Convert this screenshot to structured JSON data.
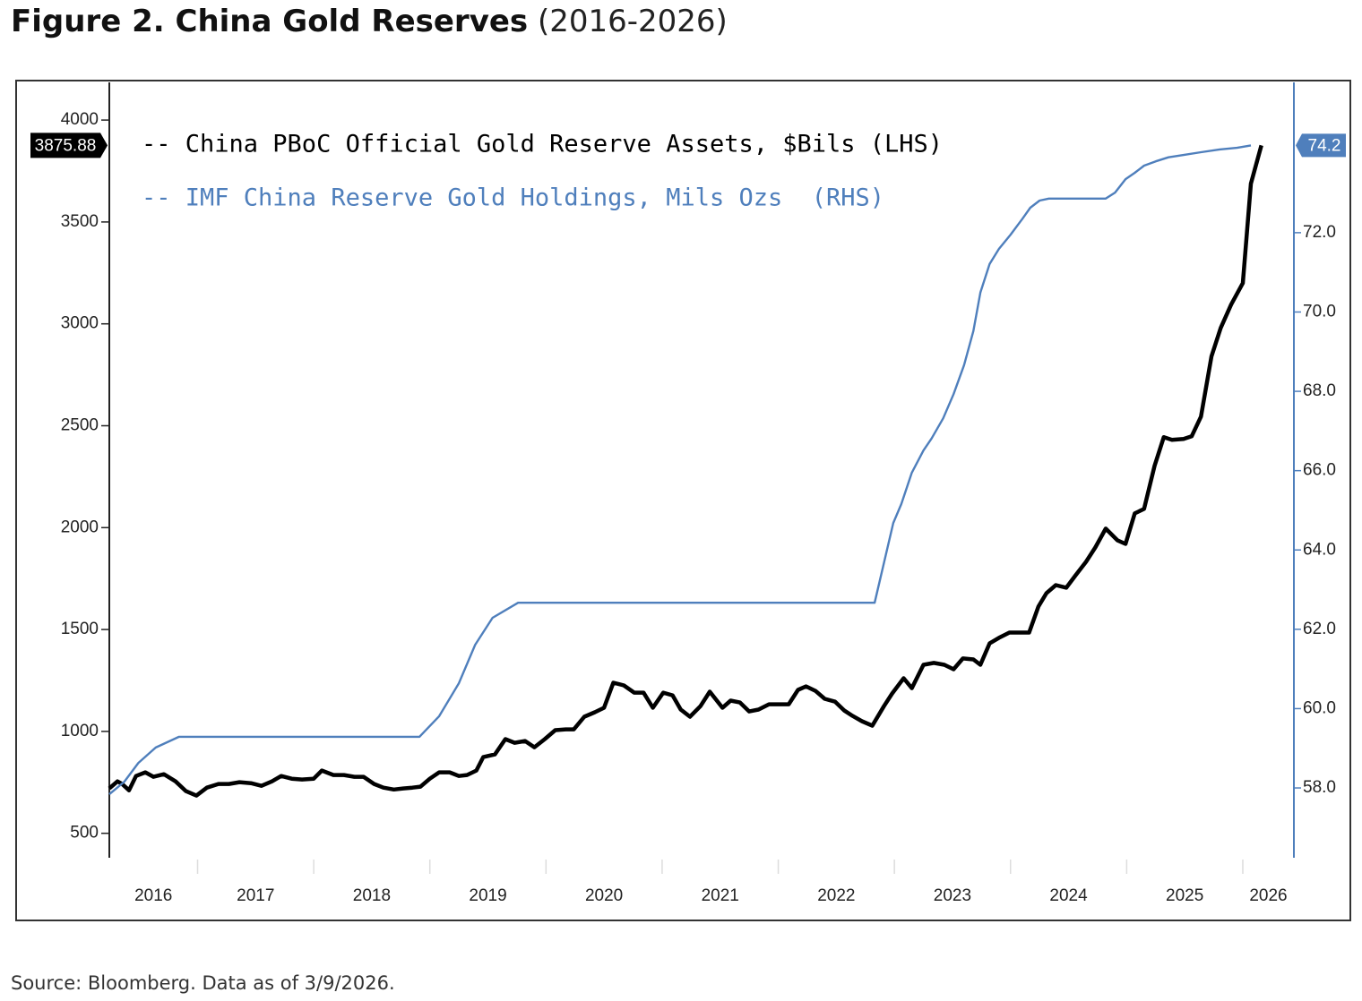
{
  "title": "Figure 2. China Gold Reserves",
  "subtitle": "(2016-2026)",
  "source": "Source: Bloomberg. Data as of 3/9/2026.",
  "chart_data": {
    "type": "line",
    "legend": "upper left",
    "xlim": [
      2016.24,
      2026.44
    ],
    "xticks": [
      2016,
      2017,
      2018,
      2019,
      2020,
      2021,
      2022,
      2023,
      2024,
      2025,
      2026
    ],
    "ylim": [
      380,
      4185
    ],
    "yticks": [
      500,
      1000,
      1500,
      2000,
      2500,
      3000,
      3500,
      4000
    ],
    "y2lim": [
      56.24,
      75.79
    ],
    "y2ticks": [
      {
        "value": 58,
        "label": "58.0"
      },
      {
        "value": 60,
        "label": "60.0"
      },
      {
        "value": 62,
        "label": "62.0"
      },
      {
        "value": 64,
        "label": "64.0"
      },
      {
        "value": 66,
        "label": "66.0"
      },
      {
        "value": 68,
        "label": "68.0"
      },
      {
        "value": 70,
        "label": "70.0"
      },
      {
        "value": 72,
        "label": "72.0"
      }
    ],
    "series": [
      {
        "name": "-- China PBoC Official Gold Reserve Assets, $Bils (LHS)",
        "color": "#000000",
        "axis": "y",
        "x": [
          2016.24,
          2016.31,
          2016.35,
          2016.41,
          2016.47,
          2016.55,
          2016.62,
          2016.71,
          2016.81,
          2016.9,
          2016.99,
          2017.08,
          2017.18,
          2017.27,
          2017.36,
          2017.46,
          2017.55,
          2017.64,
          2017.72,
          2017.81,
          2017.9,
          2018.0,
          2018.07,
          2018.17,
          2018.26,
          2018.35,
          2018.43,
          2018.52,
          2018.6,
          2018.69,
          2018.77,
          2018.85,
          2018.92,
          2019.0,
          2019.08,
          2019.17,
          2019.25,
          2019.32,
          2019.4,
          2019.46,
          2019.56,
          2019.65,
          2019.73,
          2019.82,
          2019.9,
          2019.99,
          2020.08,
          2020.17,
          2020.24,
          2020.33,
          2020.42,
          2020.5,
          2020.58,
          2020.67,
          2020.76,
          2020.84,
          2020.92,
          2021.01,
          2021.09,
          2021.16,
          2021.24,
          2021.33,
          2021.41,
          2021.52,
          2021.59,
          2021.67,
          2021.75,
          2021.83,
          2021.92,
          2022.0,
          2022.09,
          2022.17,
          2022.24,
          2022.32,
          2022.4,
          2022.49,
          2022.57,
          2022.64,
          2022.72,
          2022.81,
          2022.91,
          2022.98,
          2023.08,
          2023.15,
          2023.25,
          2023.34,
          2023.43,
          2023.51,
          2023.59,
          2023.68,
          2023.74,
          2023.82,
          2023.9,
          2023.99,
          2024.07,
          2024.16,
          2024.24,
          2024.31,
          2024.39,
          2024.48,
          2024.56,
          2024.65,
          2024.73,
          2024.82,
          2024.92,
          2024.99,
          2025.07,
          2025.15,
          2025.24,
          2025.32,
          2025.39,
          2025.49,
          2025.56,
          2025.64,
          2025.73,
          2025.81,
          2025.9,
          2026.0,
          2026.07,
          2026.16
        ],
        "values": [
          720,
          755,
          742,
          711,
          781,
          799,
          777,
          790,
          755,
          707,
          685,
          724,
          742,
          742,
          751,
          746,
          733,
          755,
          781,
          768,
          764,
          768,
          808,
          786,
          786,
          777,
          777,
          742,
          724,
          715,
          720,
          724,
          729,
          768,
          799,
          799,
          781,
          786,
          808,
          874,
          887,
          962,
          944,
          953,
          922,
          962,
          1006,
          1010,
          1010,
          1072,
          1094,
          1116,
          1239,
          1226,
          1190,
          1190,
          1116,
          1190,
          1177,
          1107,
          1072,
          1124,
          1195,
          1116,
          1151,
          1142,
          1098,
          1107,
          1133,
          1133,
          1133,
          1204,
          1221,
          1199,
          1160,
          1146,
          1102,
          1076,
          1050,
          1028,
          1124,
          1186,
          1261,
          1212,
          1327,
          1336,
          1327,
          1305,
          1358,
          1353,
          1327,
          1432,
          1459,
          1485,
          1485,
          1485,
          1613,
          1679,
          1718,
          1705,
          1766,
          1832,
          1903,
          1995,
          1938,
          1920,
          2070,
          2092,
          2303,
          2444,
          2431,
          2435,
          2448,
          2545,
          2840,
          2980,
          3095,
          3200,
          3688,
          3875.88
        ]
      },
      {
        "name": "-- IMF China Reserve Gold Holdings, Mils Ozs  (RHS)",
        "color": "#4f7fbc",
        "axis": "y2",
        "x": [
          2016.24,
          2016.37,
          2016.49,
          2016.64,
          2016.84,
          2018.91,
          2019.08,
          2019.25,
          2019.39,
          2019.54,
          2019.76,
          2022.83,
          2022.99,
          2023.06,
          2023.15,
          2023.25,
          2023.32,
          2023.42,
          2023.51,
          2023.6,
          2023.68,
          2023.74,
          2023.82,
          2023.9,
          2024.0,
          2024.1,
          2024.17,
          2024.25,
          2024.33,
          2024.82,
          2024.9,
          2024.99,
          2025.07,
          2025.15,
          2025.25,
          2025.36,
          2025.49,
          2025.64,
          2025.8,
          2025.95,
          2026.07
        ],
        "values": [
          57.84,
          58.16,
          58.63,
          59.02,
          59.29,
          59.29,
          59.81,
          60.64,
          61.61,
          62.29,
          62.67,
          62.67,
          64.68,
          65.16,
          65.95,
          66.51,
          66.81,
          67.32,
          67.93,
          68.66,
          69.52,
          70.49,
          71.21,
          71.59,
          71.95,
          72.34,
          72.63,
          72.81,
          72.86,
          72.86,
          73.01,
          73.35,
          73.51,
          73.69,
          73.8,
          73.9,
          73.96,
          74.03,
          74.1,
          74.14,
          74.2
        ]
      }
    ]
  }
}
